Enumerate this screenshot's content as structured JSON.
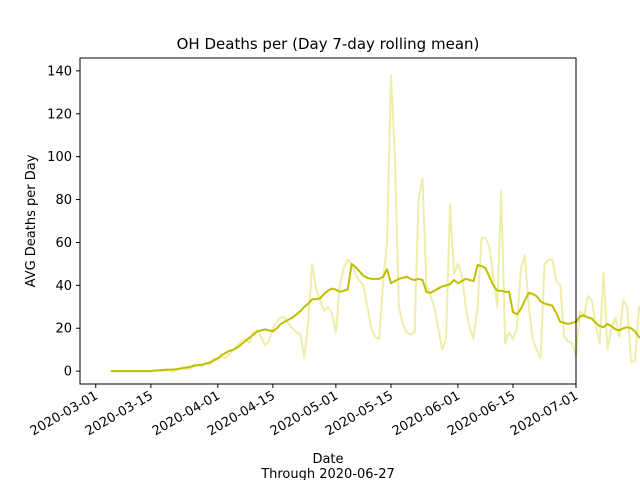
{
  "chart_data": {
    "type": "line",
    "title": "OH Deaths per (Day 7-day rolling mean)",
    "xlabel": "Date",
    "xlabel_note": "Through 2020-06-27",
    "ylabel": "AVG Deaths per Day",
    "ylim": [
      -6,
      146
    ],
    "xlim": [
      "2020-02-26",
      "2020-07-01"
    ],
    "y_ticks": [
      0,
      20,
      40,
      60,
      80,
      100,
      120,
      140
    ],
    "x_ticks": [
      "2020-03-01",
      "2020-03-15",
      "2020-04-01",
      "2020-04-15",
      "2020-05-01",
      "2020-05-15",
      "2020-06-01",
      "2020-06-15",
      "2020-07-01"
    ],
    "grid": false,
    "colors": {
      "daily": "#eeeeaa",
      "rolling": "#bfbf00"
    },
    "x_start": "2020-03-05",
    "series": [
      {
        "name": "",
        "values": [
          0,
          0,
          0,
          0,
          0,
          0,
          0,
          0,
          0,
          0,
          0,
          0,
          0,
          0,
          1,
          0,
          0,
          1,
          2,
          1,
          1,
          3,
          3,
          2,
          4,
          3,
          6,
          5,
          7,
          6,
          8,
          10,
          12,
          14,
          15,
          13,
          18,
          19,
          16,
          12,
          14,
          20,
          23,
          25,
          25,
          22,
          20,
          18,
          17,
          6,
          24,
          50,
          38,
          33,
          28,
          30,
          27,
          18,
          40,
          48,
          52,
          50,
          45,
          42,
          40,
          30,
          20,
          16,
          15,
          42,
          60,
          138,
          100,
          30,
          22,
          18,
          17,
          18,
          80,
          90,
          40,
          35,
          30,
          20,
          10,
          15,
          78,
          45,
          50,
          45,
          30,
          20,
          15,
          30,
          62,
          62,
          58,
          44,
          30,
          84,
          13,
          18,
          15,
          20,
          48,
          54,
          30,
          15,
          10,
          6,
          50,
          52,
          52,
          42,
          40,
          16,
          14,
          13,
          7,
          28,
          25,
          35,
          33,
          22,
          13,
          46,
          10,
          20,
          25,
          16,
          33,
          30,
          4,
          5,
          30,
          24,
          18,
          16,
          16
        ]
      },
      {
        "name": "",
        "values": [
          0,
          0,
          0,
          0,
          0,
          0,
          0,
          0,
          0,
          0,
          0,
          0.3,
          0.4,
          0.5,
          0.6,
          0.7,
          0.8,
          1,
          1.3,
          1.7,
          2,
          2.5,
          2.8,
          3,
          3.5,
          4,
          5,
          6,
          7.5,
          8.5,
          9.5,
          10,
          11,
          12.5,
          14,
          15.5,
          17,
          18.5,
          19,
          19.5,
          19,
          18.5,
          20,
          22,
          23,
          24,
          25,
          26.5,
          28,
          30,
          31.5,
          33.5,
          33.5,
          34,
          36,
          37.5,
          38.5,
          38,
          37,
          37.5,
          38,
          50,
          48.5,
          46.5,
          44.5,
          43.5,
          43,
          43,
          43,
          44,
          47.5,
          41,
          42,
          43,
          43.5,
          44,
          43,
          42.5,
          43,
          42.5,
          37,
          36.5,
          37.5,
          38.5,
          39.5,
          40,
          40.5,
          42.5,
          41,
          42,
          43,
          42.5,
          42,
          49.5,
          49,
          48,
          44,
          40,
          37.5,
          37.5,
          37,
          37,
          27.5,
          26.5,
          29,
          33,
          36.5,
          36,
          35,
          32.5,
          31.5,
          31,
          30.5,
          27,
          23,
          22.5,
          22,
          22.5,
          23,
          25.5,
          26,
          25,
          24.5,
          22.5,
          21,
          20.5,
          22,
          21,
          19.5,
          19,
          20,
          20.5,
          20,
          18.5,
          16,
          15
        ]
      }
    ]
  }
}
